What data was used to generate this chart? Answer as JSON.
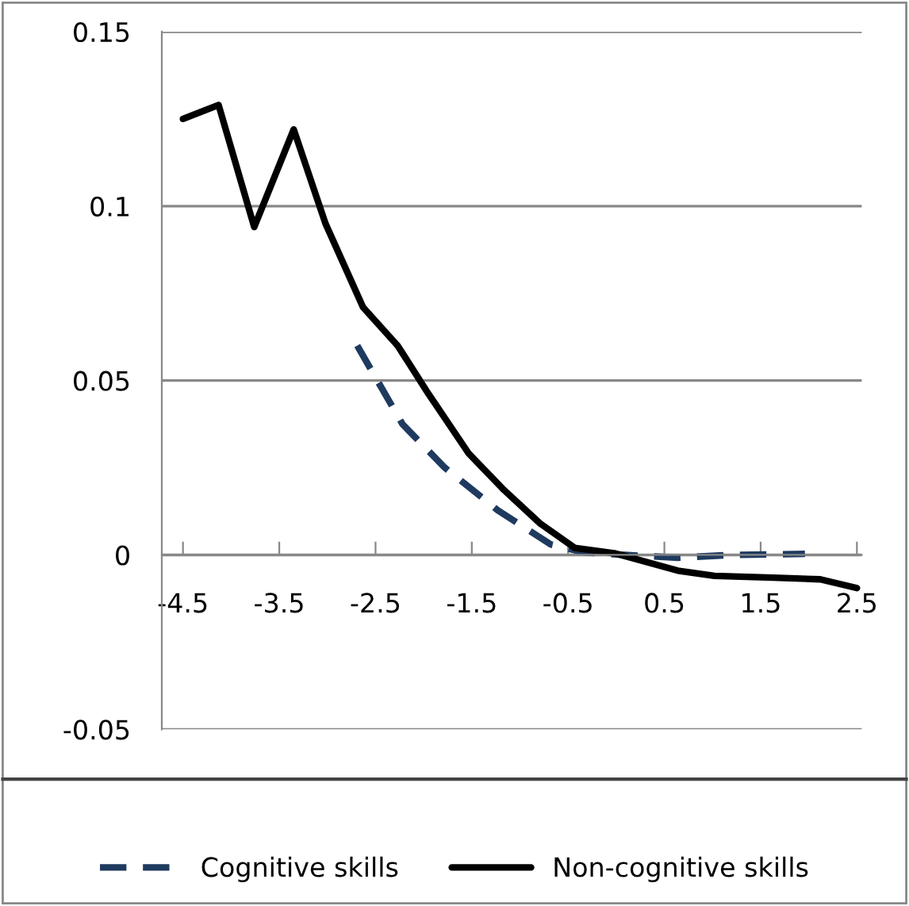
{
  "chart_data": {
    "type": "line",
    "xlim": [
      -4.72,
      2.55
    ],
    "xticks": [
      -4.5,
      -3.5,
      -2.5,
      -1.5,
      -0.5,
      0.5,
      1.5,
      2.5
    ],
    "ylim": [
      -0.05,
      0.15
    ],
    "yticks": [
      -0.05,
      0,
      0.05,
      0.1,
      0.15
    ],
    "grid": "y",
    "legend": "bottom",
    "marker": "none",
    "series": [
      {
        "name": "Cognitive skills",
        "color": "#1f3a5f",
        "line_style": "dashed",
        "x": [
          -2.69,
          -2.22,
          -1.78,
          -1.23,
          -0.68,
          -0.35,
          0.09,
          0.64,
          1.19,
          1.96
        ],
        "values": [
          0.06,
          0.0375,
          0.025,
          0.0128,
          0.003,
          0.0008,
          0,
          -0.0008,
          0,
          0.0003
        ]
      },
      {
        "name": "Non-cognitive skills",
        "color": "#000000",
        "line_style": "solid",
        "x": [
          -4.5,
          -4.13,
          -3.76,
          -3.35,
          -3.02,
          -2.63,
          -2.27,
          -1.97,
          -1.53,
          -1.18,
          -0.79,
          -0.43,
          -0.02,
          0.31,
          0.64,
          1.02,
          1.63,
          2.12,
          2.5
        ],
        "values": [
          0.125,
          0.129,
          0.094,
          0.122,
          0.095,
          0.071,
          0.06,
          0.047,
          0.029,
          0.019,
          0.009,
          0.002,
          0.0005,
          -0.002,
          -0.0045,
          -0.006,
          -0.0065,
          -0.007,
          -0.0095
        ]
      }
    ]
  }
}
